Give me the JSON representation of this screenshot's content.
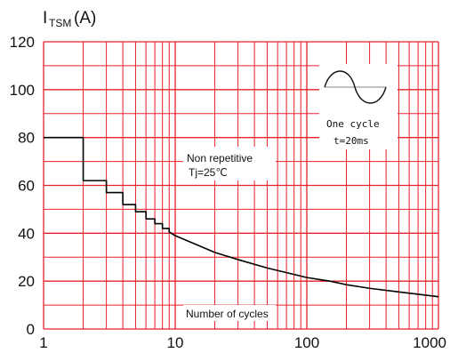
{
  "chart_data": {
    "type": "line",
    "y_axis_title": {
      "main": "I",
      "subscript": "TSM",
      "unit": "(A)"
    },
    "x_scale": "log",
    "xlim": [
      1,
      1000
    ],
    "ylim": [
      0,
      120
    ],
    "x_ticks": [
      "1",
      "10",
      "100",
      "1000"
    ],
    "y_ticks": [
      "0",
      "20",
      "40",
      "60",
      "80",
      "100",
      "120"
    ],
    "grid": true,
    "series": [
      {
        "name": "",
        "step_points": [
          {
            "x": 1,
            "y": 80
          },
          {
            "x": 2,
            "y": 62
          },
          {
            "x": 3,
            "y": 57
          },
          {
            "x": 4,
            "y": 52
          },
          {
            "x": 5,
            "y": 49
          },
          {
            "x": 6,
            "y": 46
          },
          {
            "x": 7,
            "y": 44
          },
          {
            "x": 8,
            "y": 42
          },
          {
            "x": 9,
            "y": 40.5
          }
        ],
        "curve_points": [
          {
            "x": 10,
            "y": 39
          },
          {
            "x": 20,
            "y": 32
          },
          {
            "x": 30,
            "y": 29
          },
          {
            "x": 50,
            "y": 25.5
          },
          {
            "x": 100,
            "y": 21.5
          },
          {
            "x": 150,
            "y": 20
          },
          {
            "x": 200,
            "y": 18.5
          },
          {
            "x": 300,
            "y": 17
          },
          {
            "x": 500,
            "y": 15.5
          },
          {
            "x": 1000,
            "y": 13.5
          }
        ]
      }
    ],
    "annotations": {
      "condition_line1": "Non repetitive",
      "condition_line2": "Tj=25℃",
      "cycle_line1": "One cycle",
      "cycle_line2": "t=20ms",
      "xlabel": "Number of cycles"
    },
    "colors": {
      "grid": "#e8202a",
      "curve": "#000000",
      "text": "#111111"
    }
  }
}
